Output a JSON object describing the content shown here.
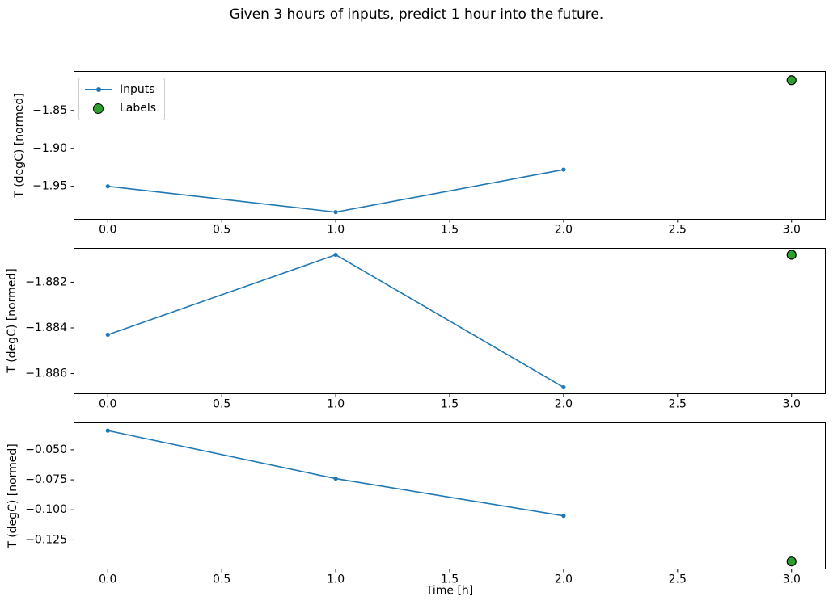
{
  "figure": {
    "title": "Given 3 hours of inputs, predict 1 hour into the future.",
    "background": "#ffffff"
  },
  "colors": {
    "inputs_line": "#1f77b4",
    "labels_fill": "#2ca02c",
    "labels_edge": "#000000",
    "axis": "#000000",
    "text": "#000000",
    "legend_border": "#cccccc"
  },
  "legend": {
    "items": [
      {
        "label": "Inputs",
        "marker": "line-with-dot",
        "color": "#1f77b4"
      },
      {
        "label": "Labels",
        "marker": "filled-circle",
        "color": "#2ca02c"
      }
    ]
  },
  "chart_data": [
    {
      "type": "line",
      "ylabel": "T (degC) [normed]",
      "xlabel": "",
      "x": [
        0.0,
        1.0,
        2.0
      ],
      "series": [
        {
          "name": "Inputs",
          "values": [
            -1.95,
            -1.984,
            -1.928
          ]
        }
      ],
      "label_point": {
        "name": "Labels",
        "x": 3.0,
        "y": -1.81
      },
      "xticks": [
        0.0,
        0.5,
        1.0,
        1.5,
        2.0,
        2.5,
        3.0
      ],
      "xtick_labels": [
        "0.0",
        "0.5",
        "1.0",
        "1.5",
        "2.0",
        "2.5",
        "3.0"
      ],
      "yticks": [
        -1.85,
        -1.9,
        -1.95
      ],
      "ytick_labels": [
        "−1.85",
        "−1.90",
        "−1.95"
      ],
      "xlim": [
        -0.15,
        3.15
      ],
      "ylim": [
        -1.994,
        -1.798
      ],
      "grid": false,
      "legend_position": "upper-left"
    },
    {
      "type": "line",
      "ylabel": "T (degC) [normed]",
      "xlabel": "",
      "x": [
        0.0,
        1.0,
        2.0
      ],
      "series": [
        {
          "name": "Inputs",
          "values": [
            -1.8843,
            -1.8808,
            -1.8866
          ]
        }
      ],
      "label_point": {
        "name": "Labels",
        "x": 3.0,
        "y": -1.8808
      },
      "xticks": [
        0.0,
        0.5,
        1.0,
        1.5,
        2.0,
        2.5,
        3.0
      ],
      "xtick_labels": [
        "0.0",
        "0.5",
        "1.0",
        "1.5",
        "2.0",
        "2.5",
        "3.0"
      ],
      "yticks": [
        -1.882,
        -1.884,
        -1.886
      ],
      "ytick_labels": [
        "−1.882",
        "−1.884",
        "−1.886"
      ],
      "xlim": [
        -0.15,
        3.15
      ],
      "ylim": [
        -1.8869,
        -1.8805
      ],
      "grid": false,
      "legend_position": "none"
    },
    {
      "type": "line",
      "ylabel": "T (degC) [normed]",
      "xlabel": "Time [h]",
      "x": [
        0.0,
        1.0,
        2.0
      ],
      "series": [
        {
          "name": "Inputs",
          "values": [
            -0.034,
            -0.074,
            -0.105
          ]
        }
      ],
      "label_point": {
        "name": "Labels",
        "x": 3.0,
        "y": -0.143
      },
      "xticks": [
        0.0,
        0.5,
        1.0,
        1.5,
        2.0,
        2.5,
        3.0
      ],
      "xtick_labels": [
        "0.0",
        "0.5",
        "1.0",
        "1.5",
        "2.0",
        "2.5",
        "3.0"
      ],
      "yticks": [
        -0.05,
        -0.075,
        -0.1,
        -0.125
      ],
      "ytick_labels": [
        "−0.050",
        "−0.075",
        "−0.100",
        "−0.125"
      ],
      "xlim": [
        -0.15,
        3.15
      ],
      "ylim": [
        -0.1496,
        -0.0272
      ],
      "grid": false,
      "legend_position": "none"
    }
  ]
}
